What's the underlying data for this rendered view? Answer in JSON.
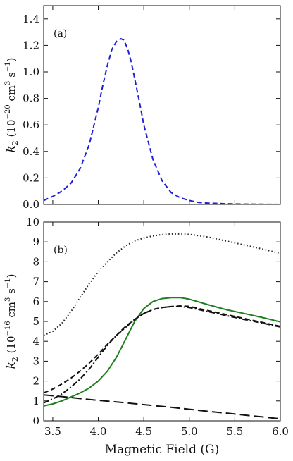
{
  "chart_data": [
    {
      "type": "line",
      "panel_label": "(a)",
      "ylabel": {
        "var": "k",
        "sub": "2",
        "pre": " (10",
        "exp": "−20",
        "mid": " cm",
        "exp2": "3",
        "mid2": " s",
        "exp3": "−1",
        "post": ")"
      },
      "xlim": [
        3.4,
        6.0
      ],
      "ylim": [
        0.0,
        1.5
      ],
      "yticks": [
        "0.0",
        "0.2",
        "0.4",
        "0.6",
        "0.8",
        "1.0",
        "1.2",
        "1.4"
      ],
      "grid": false,
      "series": [
        {
          "style": "dashed",
          "color": "#1f1fd6",
          "x": [
            3.4,
            3.5,
            3.6,
            3.7,
            3.8,
            3.9,
            4.0,
            4.05,
            4.1,
            4.15,
            4.2,
            4.25,
            4.28,
            4.32,
            4.36,
            4.4,
            4.45,
            4.5,
            4.6,
            4.7,
            4.8,
            4.9,
            5.0,
            5.1,
            5.2,
            5.4,
            5.6,
            5.8,
            6.0
          ],
          "y": [
            0.03,
            0.06,
            0.1,
            0.16,
            0.27,
            0.45,
            0.73,
            0.9,
            1.05,
            1.17,
            1.23,
            1.25,
            1.24,
            1.18,
            1.08,
            0.95,
            0.78,
            0.6,
            0.34,
            0.18,
            0.09,
            0.05,
            0.03,
            0.015,
            0.01,
            0.005,
            0.002,
            0.001,
            0.0
          ]
        }
      ]
    },
    {
      "type": "line",
      "panel_label": "(b)",
      "ylabel": {
        "var": "k",
        "sub": "2",
        "pre": " (10",
        "exp": "−16",
        "mid": " cm",
        "exp2": "3",
        "mid2": " s",
        "exp3": "−1",
        "post": ")"
      },
      "xlabel": "Magnetic Field (G)",
      "xlim": [
        3.4,
        6.0
      ],
      "ylim": [
        0,
        10
      ],
      "xticks": [
        "3.5",
        "4.0",
        "4.5",
        "5.0",
        "5.5",
        "6.0"
      ],
      "yticks": [
        "0",
        "1",
        "2",
        "3",
        "4",
        "5",
        "6",
        "7",
        "8",
        "9",
        "10"
      ],
      "grid": false,
      "series": [
        {
          "style": "dotted",
          "color": "#222222",
          "x": [
            3.4,
            3.5,
            3.6,
            3.7,
            3.8,
            3.9,
            4.0,
            4.1,
            4.2,
            4.3,
            4.4,
            4.5,
            4.6,
            4.7,
            4.8,
            4.9,
            5.0,
            5.2,
            5.4,
            5.6,
            5.8,
            6.0
          ],
          "y": [
            4.3,
            4.5,
            4.9,
            5.5,
            6.2,
            6.9,
            7.5,
            8.0,
            8.45,
            8.8,
            9.05,
            9.2,
            9.3,
            9.37,
            9.4,
            9.4,
            9.38,
            9.25,
            9.05,
            8.85,
            8.65,
            8.42
          ]
        },
        {
          "style": "solid",
          "color": "#1f7f1f",
          "x": [
            3.4,
            3.5,
            3.6,
            3.7,
            3.8,
            3.9,
            4.0,
            4.1,
            4.2,
            4.3,
            4.4,
            4.5,
            4.6,
            4.7,
            4.8,
            4.9,
            5.0,
            5.2,
            5.4,
            5.6,
            5.8,
            6.0
          ],
          "y": [
            0.75,
            0.85,
            1.0,
            1.2,
            1.4,
            1.65,
            2.0,
            2.5,
            3.2,
            4.1,
            5.0,
            5.65,
            6.0,
            6.15,
            6.2,
            6.2,
            6.12,
            5.85,
            5.6,
            5.4,
            5.2,
            4.98
          ]
        },
        {
          "style": "dashed",
          "color": "#111111",
          "x": [
            3.4,
            3.5,
            3.6,
            3.7,
            3.8,
            3.9,
            4.0,
            4.1,
            4.2,
            4.3,
            4.4,
            4.5,
            4.6,
            4.7,
            4.8,
            4.9,
            5.0,
            5.2,
            5.4,
            5.6,
            5.8,
            6.0
          ],
          "y": [
            1.4,
            1.6,
            1.85,
            2.15,
            2.5,
            2.9,
            3.35,
            3.85,
            4.3,
            4.75,
            5.1,
            5.4,
            5.6,
            5.7,
            5.75,
            5.78,
            5.76,
            5.55,
            5.35,
            5.15,
            4.95,
            4.75
          ]
        },
        {
          "style": "dashdot",
          "color": "#111111",
          "x": [
            3.4,
            3.5,
            3.6,
            3.7,
            3.8,
            3.9,
            4.0,
            4.1,
            4.2,
            4.3,
            4.4,
            4.5,
            4.6,
            4.7,
            4.8,
            4.9,
            5.0,
            5.2,
            5.4,
            5.6,
            5.8,
            6.0
          ],
          "y": [
            0.9,
            1.1,
            1.35,
            1.7,
            2.1,
            2.6,
            3.2,
            3.8,
            4.3,
            4.7,
            5.1,
            5.4,
            5.6,
            5.7,
            5.75,
            5.75,
            5.7,
            5.5,
            5.3,
            5.1,
            4.92,
            4.72
          ]
        },
        {
          "style": "longdash",
          "color": "#111111",
          "x": [
            3.4,
            3.6,
            3.8,
            4.0,
            4.2,
            4.4,
            4.6,
            4.8,
            5.0,
            5.2,
            5.4,
            5.6,
            5.8,
            6.0
          ],
          "y": [
            1.3,
            1.22,
            1.12,
            1.03,
            0.95,
            0.86,
            0.77,
            0.68,
            0.58,
            0.48,
            0.39,
            0.29,
            0.2,
            0.1
          ]
        }
      ]
    }
  ]
}
